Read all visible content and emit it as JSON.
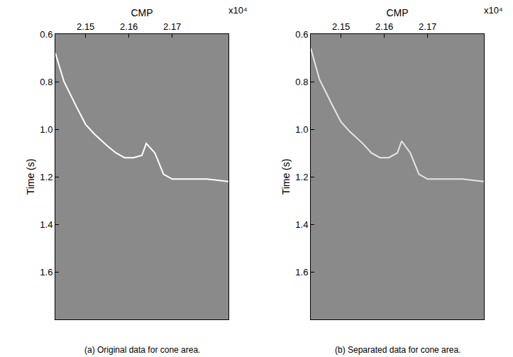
{
  "chart_data": [
    {
      "type": "line",
      "title": "(a) Original data for cone area.",
      "x_label": "CMP",
      "y_label": "Time (s)",
      "annotations": [
        "x10⁴"
      ],
      "x": [
        2.143,
        2.145,
        2.148,
        2.15,
        2.152,
        2.155,
        2.157,
        2.159,
        2.161,
        2.163,
        2.164,
        2.166,
        2.168,
        2.17,
        2.174,
        2.178,
        2.183
      ],
      "series": [
        {
          "color": "#ffffff",
          "line_style": "solid",
          "values": [
            0.68,
            0.8,
            0.91,
            0.98,
            1.02,
            1.07,
            1.1,
            1.12,
            1.12,
            1.11,
            1.06,
            1.1,
            1.19,
            1.21,
            1.21,
            1.21,
            1.22
          ]
        }
      ],
      "xlim": [
        2.143,
        2.183
      ],
      "xticks": [
        2.15,
        2.16,
        2.17
      ],
      "ylim": [
        1.8,
        0.6
      ],
      "yticks": [
        0.6,
        0.8,
        {
          "value": 1,
          "label": "1.0"
        },
        1.2,
        1.4,
        1.6
      ],
      "grid": false
    },
    {
      "type": "line",
      "title": "(b) Separated data for cone area.",
      "x_label": "CMP",
      "y_label": "Time (s)",
      "annotations": [
        "x10⁴"
      ],
      "x": [
        2.143,
        2.145,
        2.148,
        2.15,
        2.152,
        2.155,
        2.157,
        2.159,
        2.161,
        2.163,
        2.164,
        2.166,
        2.168,
        2.17,
        2.174,
        2.178,
        2.183
      ],
      "series": [
        {
          "color": "#e6e6e6",
          "line_style": "solid",
          "values": [
            0.66,
            0.79,
            0.9,
            0.97,
            1.01,
            1.06,
            1.1,
            1.12,
            1.12,
            1.1,
            1.05,
            1.1,
            1.19,
            1.21,
            1.21,
            1.21,
            1.22
          ]
        }
      ],
      "xlim": [
        2.143,
        2.183
      ],
      "xticks": [
        2.15,
        2.16,
        2.17
      ],
      "ylim": [
        1.8,
        0.6
      ],
      "yticks": [
        0.6,
        0.8,
        {
          "value": 1,
          "label": "1.0"
        },
        1.2,
        1.4,
        1.6
      ],
      "grid": false
    }
  ]
}
